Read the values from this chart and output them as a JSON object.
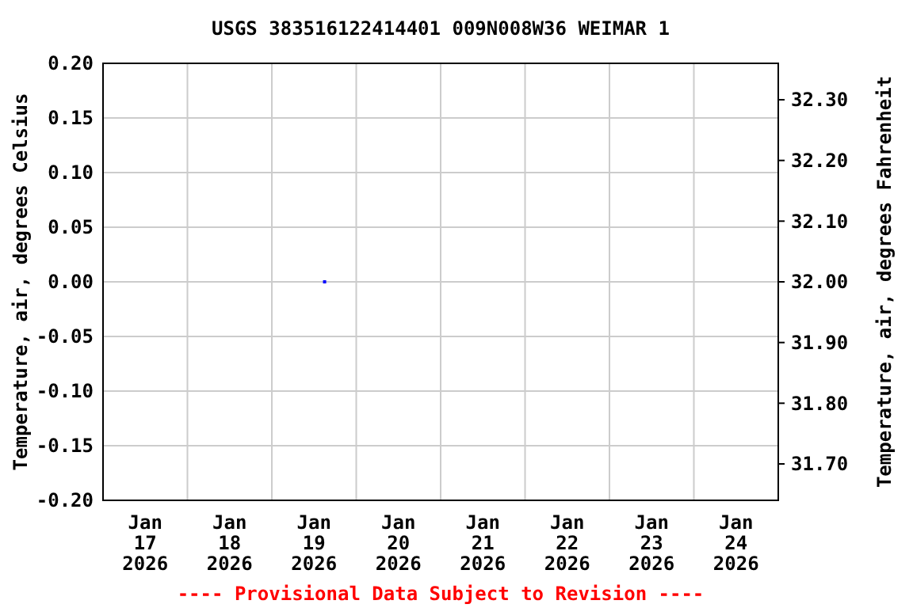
{
  "chart_data": {
    "type": "scatter",
    "title": "USGS 383516122414401 009N008W36 WEIMAR 1",
    "ylabel": "Temperature, air, degrees Celsius",
    "y2label": "Temperature, air, degrees Fahrenheit",
    "x": [
      "2026-01-19T15:00"
    ],
    "series": [
      {
        "color": "#0000ff",
        "values": [
          0.0
        ]
      }
    ],
    "marker": "square",
    "xlim": [
      "2026-01-17T00:00",
      "2026-01-25T00:00"
    ],
    "xticks": [
      {
        "value": "2026-01-17T12:00",
        "label": "Jan\n17\n2026"
      },
      {
        "value": "2026-01-18T12:00",
        "label": "Jan\n18\n2026"
      },
      {
        "value": "2026-01-19T12:00",
        "label": "Jan\n19\n2026"
      },
      {
        "value": "2026-01-20T12:00",
        "label": "Jan\n20\n2026"
      },
      {
        "value": "2026-01-21T12:00",
        "label": "Jan\n21\n2026"
      },
      {
        "value": "2026-01-22T12:00",
        "label": "Jan\n22\n2026"
      },
      {
        "value": "2026-01-23T12:00",
        "label": "Jan\n23\n2026"
      },
      {
        "value": "2026-01-24T12:00",
        "label": "Jan\n24\n2026"
      },
      {
        "value": "2026-01-18T00:00",
        "label": null
      },
      {
        "value": "2026-01-19T00:00",
        "label": null
      },
      {
        "value": "2026-01-20T00:00",
        "label": null
      },
      {
        "value": "2026-01-21T00:00",
        "label": null
      },
      {
        "value": "2026-01-22T00:00",
        "label": null
      },
      {
        "value": "2026-01-23T00:00",
        "label": null
      },
      {
        "value": "2026-01-24T00:00",
        "label": null
      }
    ],
    "ylim": [
      -0.2,
      0.2
    ],
    "yticks": [
      {
        "value": -0.2,
        "label": "-0.20"
      },
      {
        "value": -0.15,
        "label": "-0.15"
      },
      {
        "value": -0.1,
        "label": "-0.10"
      },
      {
        "value": -0.05,
        "label": "-0.05"
      },
      {
        "value": 0,
        "label": "0.00"
      },
      {
        "value": 0.05,
        "label": "0.05"
      },
      {
        "value": 0.1,
        "label": "0.10"
      },
      {
        "value": 0.15,
        "label": "0.15"
      },
      {
        "value": 0.2,
        "label": "0.20"
      }
    ],
    "y2lim": [
      31.64,
      32.36
    ],
    "y2ticks": [
      {
        "value": 31.7,
        "label": "31.70"
      },
      {
        "value": 31.8,
        "label": "31.80"
      },
      {
        "value": 31.9,
        "label": "31.90"
      },
      {
        "value": 32.0,
        "label": "32.00"
      },
      {
        "value": 32.1,
        "label": "32.10"
      },
      {
        "value": 32.2,
        "label": "32.20"
      },
      {
        "value": 32.3,
        "label": "32.30"
      }
    ],
    "grid": true,
    "annotations": [
      "---- Provisional Data Subject to Revision ----"
    ]
  }
}
